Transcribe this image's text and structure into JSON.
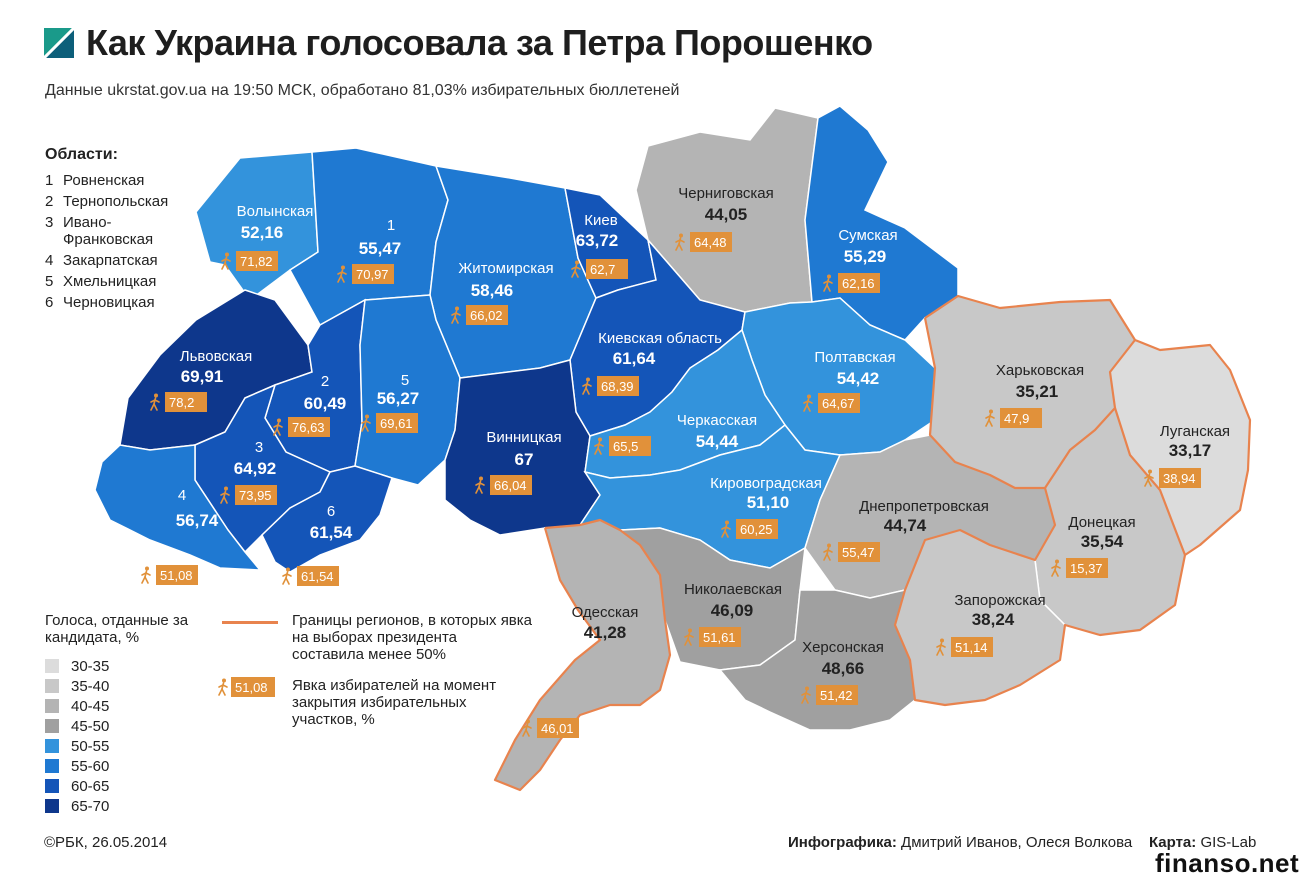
{
  "title": "Как Украина голосовала за Петра Порошенко",
  "subtitle": "Данные ukrstat.gov.ua на 19:50 МСК, обработано 81,03% избирательных бюллетеней",
  "legend_regions": {
    "header": "Области:",
    "items": [
      {
        "num": "1",
        "name": "Ровненская"
      },
      {
        "num": "2",
        "name": "Тернопольская"
      },
      {
        "num": "3",
        "name": "Ивано-Франковская"
      },
      {
        "num": "4",
        "name": "Закарпатская"
      },
      {
        "num": "5",
        "name": "Хмельницкая"
      },
      {
        "num": "6",
        "name": "Черновицкая"
      }
    ]
  },
  "legend_colors": {
    "header": "Голоса, отданные за кандидата, %",
    "items": [
      {
        "label": "30-35",
        "color": "#dcdcdc"
      },
      {
        "label": "35-40",
        "color": "#c8c8c8"
      },
      {
        "label": "40-45",
        "color": "#b4b4b4"
      },
      {
        "label": "45-50",
        "color": "#a0a0a0"
      },
      {
        "label": "50-55",
        "color": "#3393dc"
      },
      {
        "label": "55-60",
        "color": "#1f79d2"
      },
      {
        "label": "60-65",
        "color": "#1455b8"
      },
      {
        "label": "65-70",
        "color": "#0e378c"
      }
    ]
  },
  "legend_border": {
    "text": "Границы регионов, в которых явка на выборах президента составила менее 50%",
    "color": "#e8834e"
  },
  "legend_turnout": {
    "badge": "51,08",
    "text": "Явка избирателей на момент закрытия избирательных участков, %"
  },
  "regions": [
    {
      "name": "Волынская",
      "votes": "52,16",
      "turnout": "71,82",
      "color": "#3393dc"
    },
    {
      "name": "1",
      "votes": "55,47",
      "turnout": "70,97",
      "color": "#1f79d2"
    },
    {
      "name": "Житомирская",
      "votes": "58,46",
      "turnout": "66,02",
      "color": "#1f79d2"
    },
    {
      "name": "Киев",
      "votes": "63,72",
      "turnout": "62,7",
      "color": "#1455b8"
    },
    {
      "name": "Черниговская",
      "votes": "44,05",
      "turnout": "64,48",
      "color": "#b4b4b4"
    },
    {
      "name": "Сумская",
      "votes": "55,29",
      "turnout": "62,16",
      "color": "#1f79d2"
    },
    {
      "name": "Львовская",
      "votes": "69,91",
      "turnout": "78,2",
      "color": "#0e378c"
    },
    {
      "name": "2",
      "votes": "60,49",
      "turnout": "76,63",
      "color": "#1455b8"
    },
    {
      "name": "5",
      "votes": "56,27",
      "turnout": "69,61",
      "color": "#1f79d2"
    },
    {
      "name": "Киевская область",
      "votes": "61,64",
      "turnout": "68,39",
      "color": "#1455b8"
    },
    {
      "name": "Полтавская",
      "votes": "54,42",
      "turnout": "64,67",
      "color": "#3393dc"
    },
    {
      "name": "Харьковская",
      "votes": "35,21",
      "turnout": "47,9",
      "color": "#c8c8c8"
    },
    {
      "name": "Луганская",
      "votes": "33,17",
      "turnout": "38,94",
      "color": "#dcdcdc"
    },
    {
      "name": "3",
      "votes": "64,92",
      "turnout": "73,95",
      "color": "#1455b8"
    },
    {
      "name": "Винницкая",
      "votes": "67",
      "turnout": "66,04",
      "color": "#0e378c"
    },
    {
      "name": "Черкасская",
      "votes": "54,44",
      "turnout": "65,5",
      "color": "#3393dc"
    },
    {
      "name": "4",
      "votes": "56,74",
      "turnout": "51,08",
      "color": "#1f79d2"
    },
    {
      "name": "6",
      "votes": "61,54",
      "turnout": "61,54",
      "color": "#1455b8"
    },
    {
      "name": "Кировоградская",
      "votes": "51,10",
      "turnout": "60,25",
      "color": "#3393dc"
    },
    {
      "name": "Днепропетровская",
      "votes": "44,74",
      "turnout": "55,47",
      "color": "#b4b4b4"
    },
    {
      "name": "Донецкая",
      "votes": "35,54",
      "turnout": "15,37",
      "color": "#c8c8c8"
    },
    {
      "name": "Одесская",
      "votes": "41,28",
      "turnout": "46,01",
      "color": "#b4b4b4"
    },
    {
      "name": "Николаевская",
      "votes": "46,09",
      "turnout": "51,61",
      "color": "#a0a0a0"
    },
    {
      "name": "Запорожская",
      "votes": "38,24",
      "turnout": "51,14",
      "color": "#c8c8c8"
    },
    {
      "name": "Херсонская",
      "votes": "48,66",
      "turnout": "51,42",
      "color": "#a0a0a0"
    }
  ],
  "copyright": "©РБК, 26.05.2014",
  "credits": {
    "infographic_label": "Инфографика:",
    "infographic_authors": "Дмитрий Иванов, Олеся Волкова",
    "map_label": "Карта:",
    "map_source": "GIS-Lab"
  },
  "watermark": "finanso.net"
}
